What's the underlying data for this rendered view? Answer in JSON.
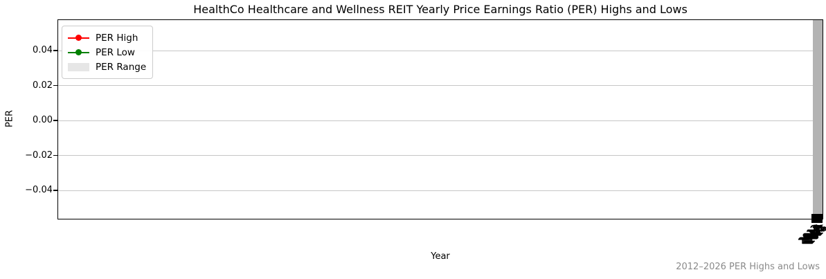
{
  "chart": {
    "title": "HealthCo Healthcare and Wellness REIT Yearly Price Earnings Ratio (PER) Highs and Lows",
    "xlabel": "Year",
    "ylabel": "PER",
    "footer": "2012–2026 PER Highs and Lows",
    "yticks": [
      "0.04",
      "0.02",
      "0.00",
      "−0.02",
      "−0.04"
    ],
    "xticks": [
      "2012",
      "2013",
      "2014",
      "2015",
      "2016",
      "2017",
      "2018",
      "2019",
      "2020",
      "2021",
      "2022",
      "2023",
      "2024",
      "2025",
      "2026"
    ],
    "legend": {
      "items": [
        {
          "label": "PER High",
          "type": "line",
          "color": "#ff0000"
        },
        {
          "label": "PER Low",
          "type": "line",
          "color": "#008000"
        },
        {
          "label": "PER Range",
          "type": "patch",
          "color": "#e6e6e6"
        }
      ]
    },
    "colors": {
      "range_bar": "#b3b3b3",
      "grid": "#c6c6c6",
      "marker_cluster": "#000000",
      "footer_text": "#8a8a8a"
    }
  },
  "chart_data": {
    "type": "line",
    "title": "HealthCo Healthcare and Wellness REIT Yearly Price Earnings Ratio (PER) Highs and Lows",
    "xlabel": "Year",
    "ylabel": "PER",
    "x": [
      2012,
      2013,
      2014,
      2015,
      2016,
      2017,
      2018,
      2019,
      2020,
      2021,
      2022,
      2023,
      2024,
      2025,
      2026
    ],
    "series": [
      {
        "name": "PER High",
        "color": "#ff0000",
        "marker": "circle",
        "values": null
      },
      {
        "name": "PER Low",
        "color": "#008000",
        "marker": "circle",
        "values": null
      },
      {
        "name": "PER Range",
        "style": "filled-band",
        "color": "#b3b3b3",
        "values": null
      }
    ],
    "ylim": [
      -0.055,
      0.0575
    ],
    "yticks": [
      0.04,
      0.02,
      0.0,
      -0.02,
      -0.04
    ],
    "grid": true,
    "legend_position": "upper left",
    "notes": "All plotted data is compressed into a narrow vertical band at the right edge of the axes; individual point values are not visually resolvable. X tick labels (2012–2026) overlap into a rotated cluster at the lower right."
  }
}
